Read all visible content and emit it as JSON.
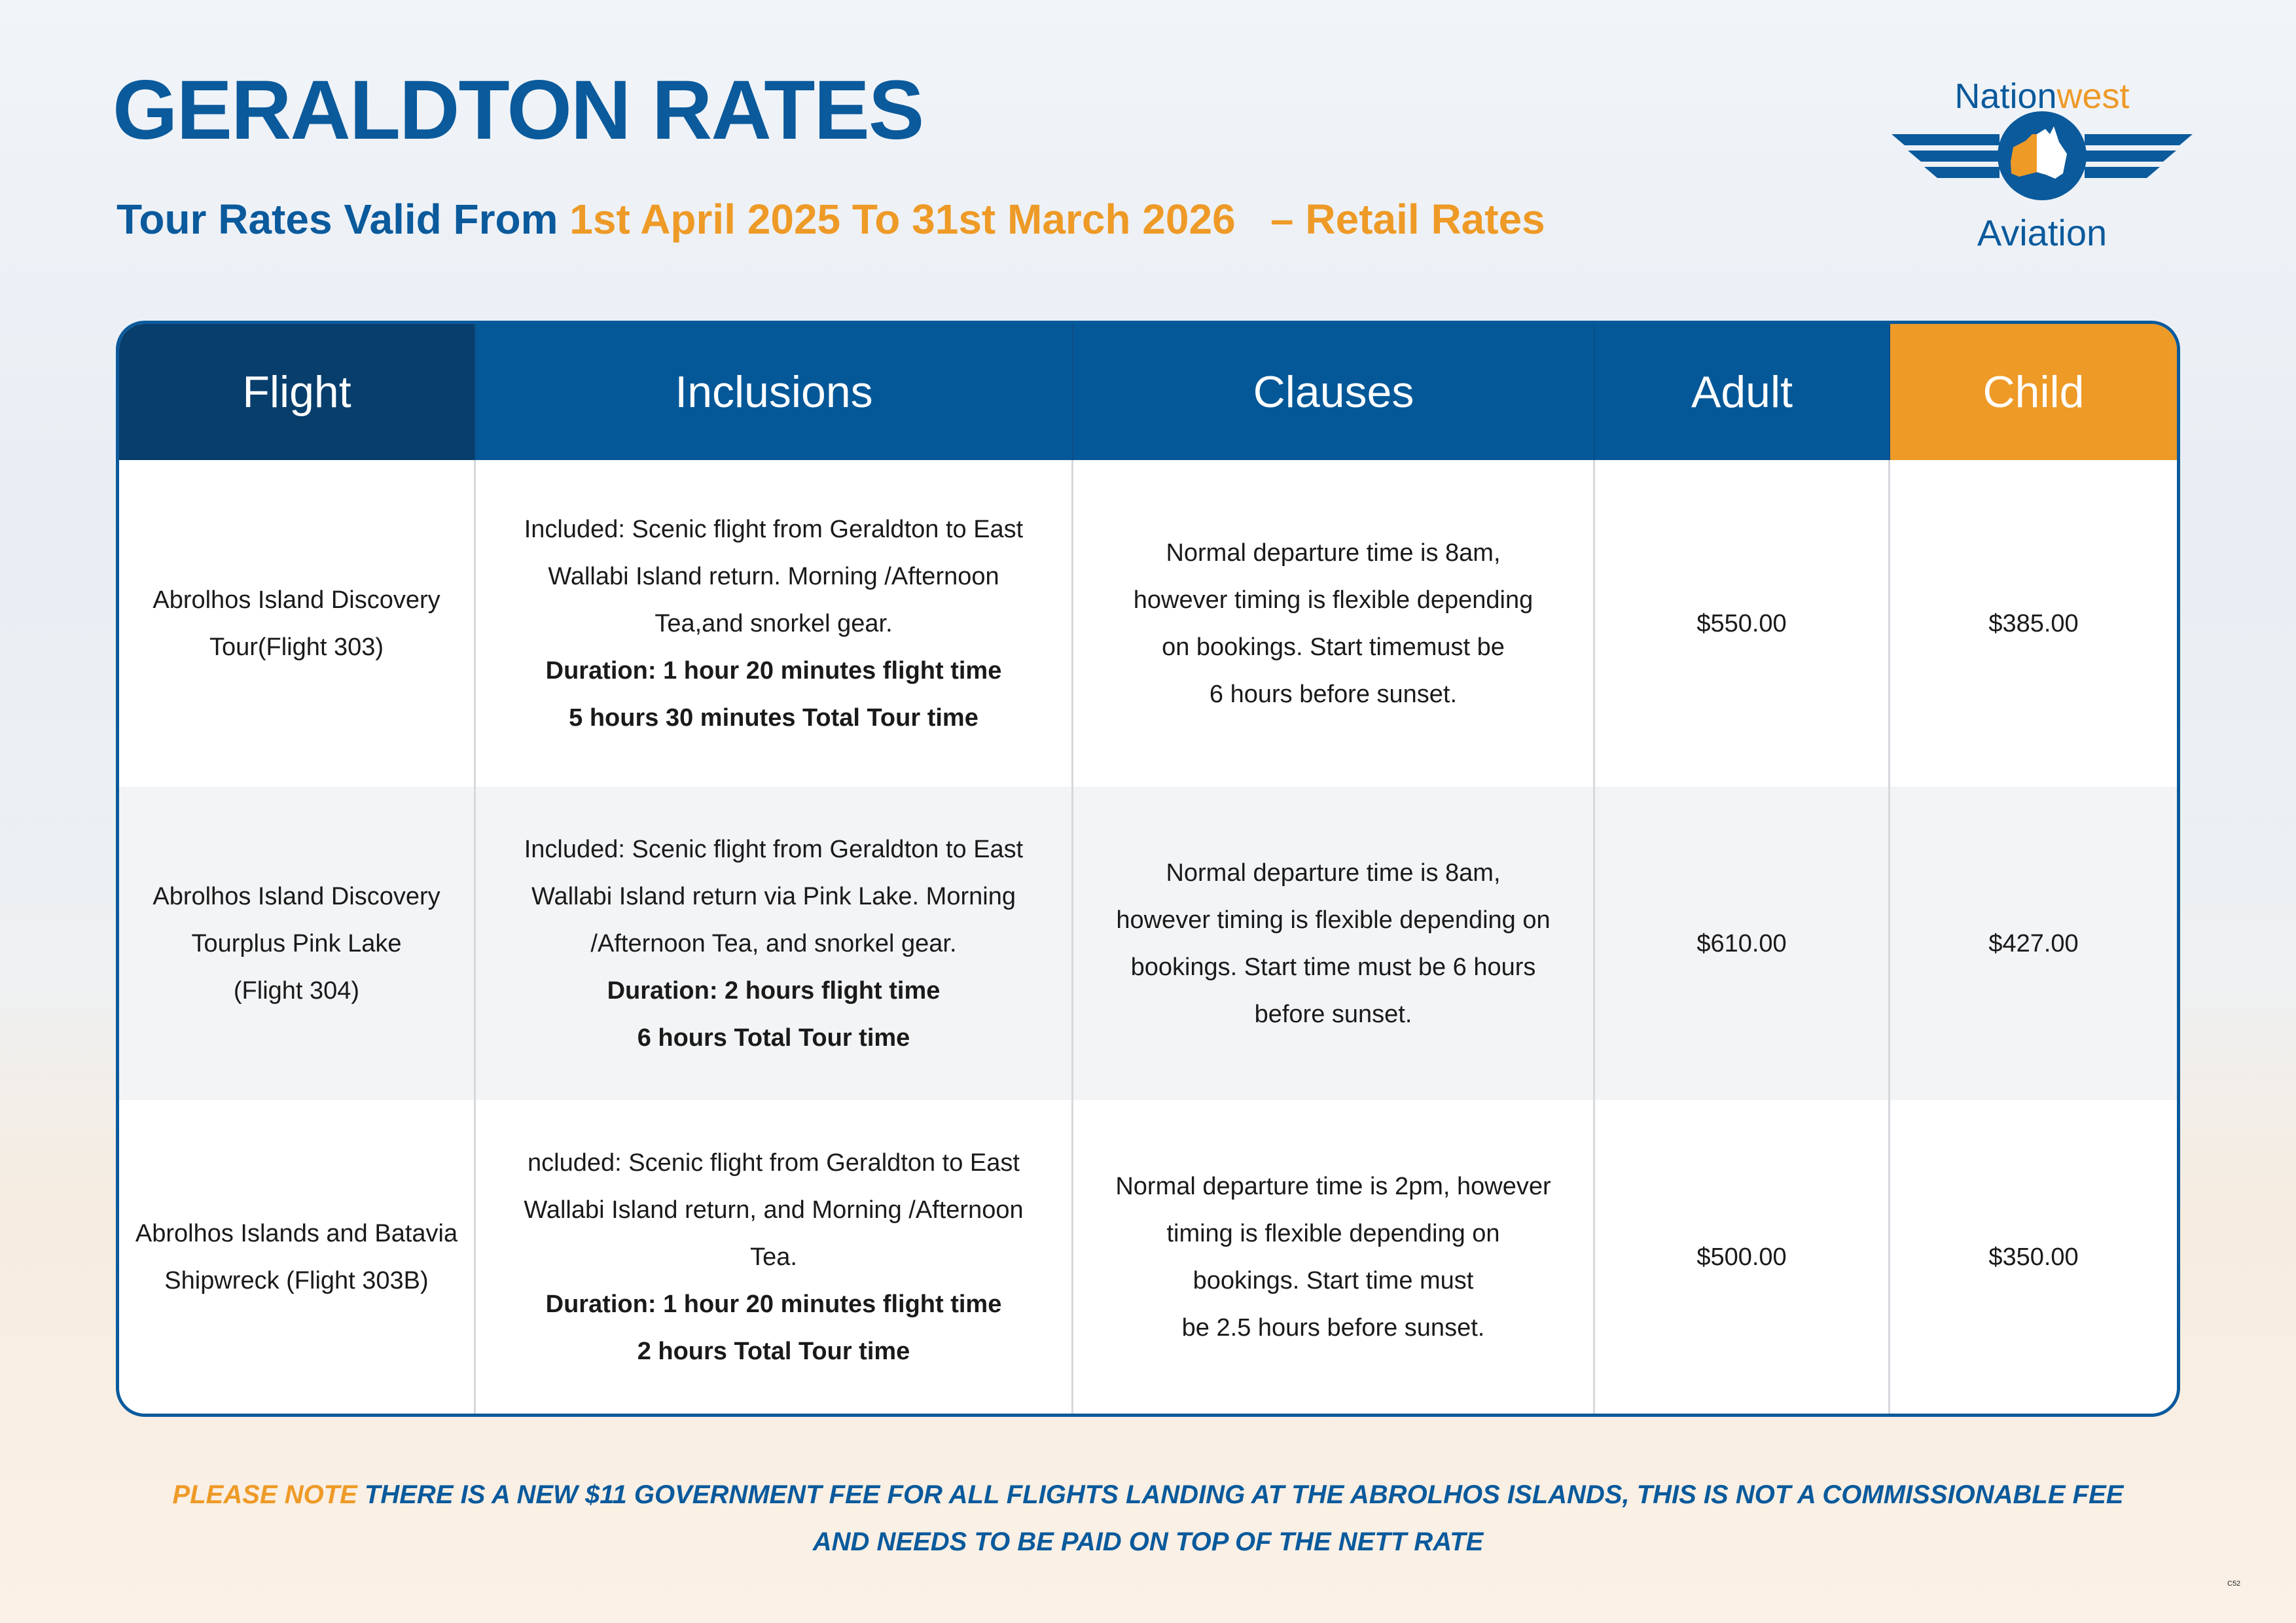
{
  "title": "GERALDTON RATES",
  "subtitle": {
    "prefix": "Tour Rates Valid From ",
    "dates": "1st April 2025 To 31st March 2026",
    "suffix": "   – Retail Rates"
  },
  "logo": {
    "text_top_1": "Nation",
    "text_top_2": "west",
    "text_bottom": "Aviation",
    "colors": {
      "blue": "#0a5a9c",
      "orange": "#ee9a27"
    }
  },
  "table": {
    "headers": [
      "Flight",
      "Inclusions",
      "Clauses",
      "Adult",
      "Child"
    ],
    "rows": [
      {
        "flight": [
          "Abrolhos Island Discovery",
          "Tour(Flight 303)"
        ],
        "inclusions": [
          "Included: Scenic flight from Geraldton to East",
          "Wallabi Island return. Morning /Afternoon",
          "Tea,and snorkel gear."
        ],
        "duration": [
          "Duration: 1 hour 20 minutes flight time",
          "5 hours 30 minutes Total Tour time"
        ],
        "clauses": [
          "Normal departure time is 8am,",
          "however timing is flexible depending",
          "on bookings. Start timemust be",
          "6 hours before sunset."
        ],
        "adult": "$550.00",
        "child": "$385.00"
      },
      {
        "flight": [
          "Abrolhos Island Discovery",
          "Tourplus Pink Lake",
          "(Flight 304)"
        ],
        "inclusions": [
          "Included: Scenic flight from Geraldton to East",
          "Wallabi Island return via Pink Lake. Morning",
          "/Afternoon Tea, and snorkel gear."
        ],
        "duration": [
          "Duration: 2 hours flight time",
          "6 hours Total Tour time"
        ],
        "clauses": [
          "Normal departure time is 8am,",
          "however timing is flexible depending on",
          "bookings. Start time must be 6 hours",
          "before sunset."
        ],
        "adult": "$610.00",
        "child": "$427.00"
      },
      {
        "flight": [
          "Abrolhos Islands and Batavia",
          "Shipwreck (Flight 303B)"
        ],
        "inclusions": [
          "ncluded: Scenic flight from Geraldton to East",
          "Wallabi Island return, and Morning /Afternoon",
          "Tea."
        ],
        "duration": [
          "Duration: 1 hour 20 minutes flight time",
          "2 hours Total Tour time"
        ],
        "clauses": [
          "Normal departure time is 2pm, however",
          "timing is flexible depending on",
          "bookings. Start time must",
          "be 2.5 hours before sunset."
        ],
        "adult": "$500.00",
        "child": "$350.00"
      }
    ]
  },
  "note": {
    "label": "PLEASE NOTE",
    "line1": " THERE IS A NEW $11 GOVERNMENT FEE FOR ALL FLIGHTS LANDING AT THE ABROLHOS ISLANDS, THIS IS NOT A COMMISSIONABLE FEE",
    "line2": "AND NEEDS TO BE PAID ON TOP OF THE NETT RATE"
  },
  "page_code": "C52"
}
